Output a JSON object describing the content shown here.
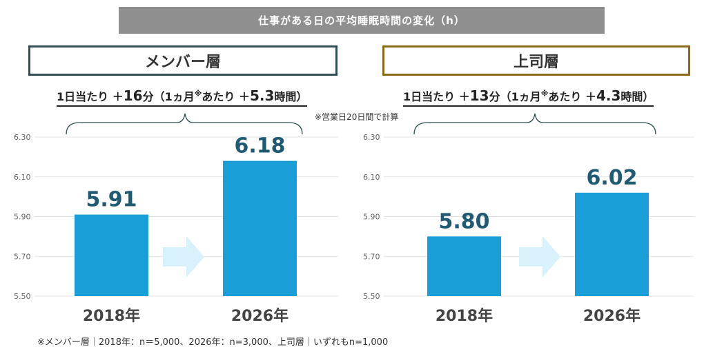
{
  "title": "仕事がある日の平均睡眠時間の変化（h）",
  "calc_note": "※営業日20日間で計算",
  "footnote": "※メンバー層｜2018年：n＝5,000、2026年：n=3,000、上司層｜いずれもn=1,000",
  "panels": [
    {
      "group_label": "メンバー層",
      "summary": {
        "prefix": "1日当たり ＋",
        "daily_value": "16",
        "daily_unit": "分（1ヵ月",
        "note_mark": "※",
        "monthly_prefix": "あたり ＋",
        "monthly_value": "5.3",
        "monthly_unit": "時間）"
      }
    },
    {
      "group_label": "上司層",
      "summary": {
        "prefix": "1日当たり ＋",
        "daily_value": "13",
        "daily_unit": "分（1ヵ月",
        "note_mark": "※",
        "monthly_prefix": "あたり ＋",
        "monthly_value": "4.3",
        "monthly_unit": "時間）"
      }
    }
  ],
  "chart_data": [
    {
      "type": "bar",
      "categories": [
        "2018年",
        "2026年"
      ],
      "values": [
        5.91,
        6.18
      ],
      "value_labels": [
        "5.91",
        "6.18"
      ],
      "ylim": [
        5.5,
        6.3
      ],
      "yticks": [
        "6.30",
        "6.10",
        "5.90",
        "5.70",
        "5.50"
      ],
      "ytick_values": [
        6.3,
        6.1,
        5.9,
        5.7,
        5.5
      ],
      "grid": true,
      "bar_color": "#1a9ed8"
    },
    {
      "type": "bar",
      "categories": [
        "2018年",
        "2026年"
      ],
      "values": [
        5.8,
        6.02
      ],
      "value_labels": [
        "5.80",
        "6.02"
      ],
      "ylim": [
        5.5,
        6.3
      ],
      "yticks": [
        "6.30",
        "6.10",
        "5.90",
        "5.70",
        "5.50"
      ],
      "ytick_values": [
        6.3,
        6.1,
        5.9,
        5.7,
        5.5
      ],
      "grid": true,
      "bar_color": "#1a9ed8"
    }
  ],
  "colors": {
    "bar": "#1a9ed8",
    "value_label": "#1f5a72",
    "arrow": "#d9f1fb",
    "member_border": "#2f4f52",
    "boss_border": "#8b6914"
  }
}
